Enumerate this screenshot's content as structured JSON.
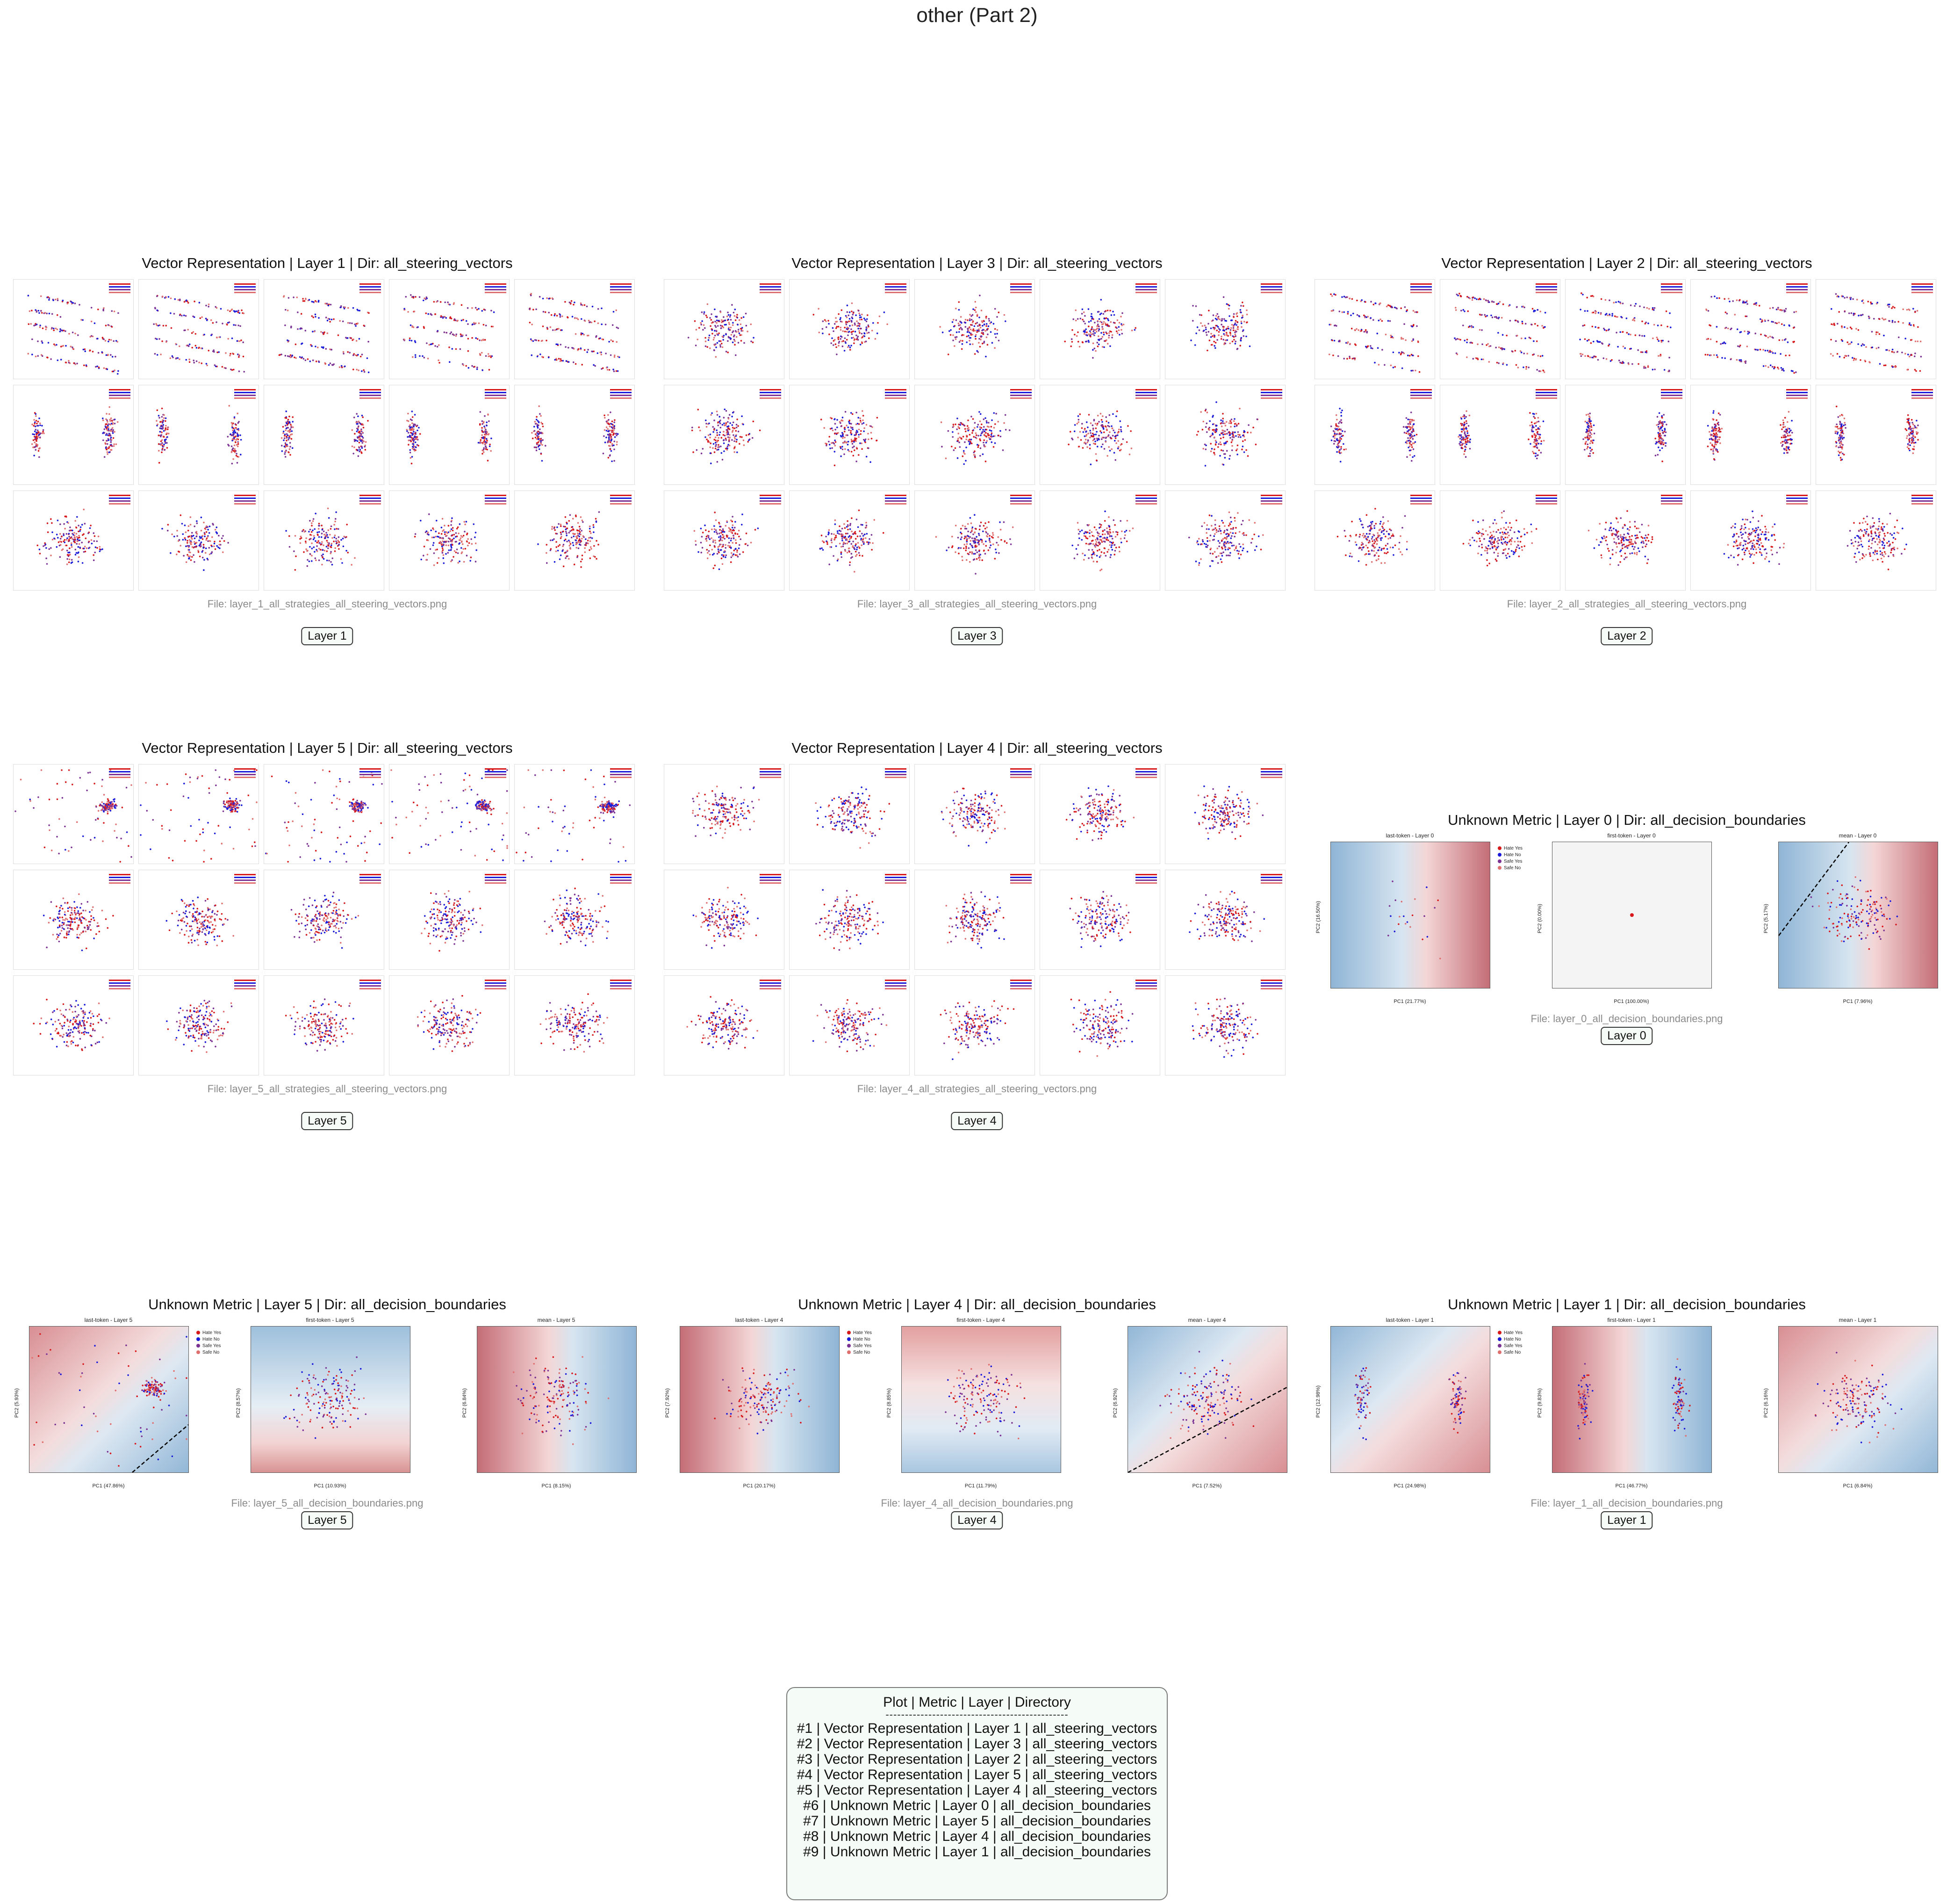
{
  "page": {
    "title": "other (Part 2)"
  },
  "colors": {
    "hate_yes": "#d7191c",
    "hate_no": "#1a1adb",
    "safe_yes": "#7b3294",
    "safe_no": "#e07070"
  },
  "panels": [
    {
      "title": "Vector Representation | Layer 1 | Dir: all_steering_vectors",
      "file": "File: layer_1_all_strategies_all_steering_vectors.png",
      "badge": "Layer 1"
    },
    {
      "title": "Vector Representation | Layer 3 | Dir: all_steering_vectors",
      "file": "File: layer_3_all_strategies_all_steering_vectors.png",
      "badge": "Layer 3"
    },
    {
      "title": "Vector Representation | Layer 2 | Dir: all_steering_vectors",
      "file": "File: layer_2_all_strategies_all_steering_vectors.png",
      "badge": "Layer 2"
    },
    {
      "title": "Vector Representation | Layer 5 | Dir: all_steering_vectors",
      "file": "File: layer_5_all_strategies_all_steering_vectors.png",
      "badge": "Layer 5"
    },
    {
      "title": "Vector Representation | Layer 4 | Dir: all_steering_vectors",
      "file": "File: layer_4_all_strategies_all_steering_vectors.png",
      "badge": "Layer 4"
    },
    {
      "title": "Unknown Metric | Layer 0 | Dir: all_decision_boundaries",
      "file": "File: layer_0_all_decision_boundaries.png",
      "badge": "Layer 0",
      "subplots": [
        {
          "title": "last-token - Layer 0",
          "xlabel": "PC1 (21.77%)",
          "ylabel": "PC2 (16.50%)"
        },
        {
          "title": "first-token - Layer 0",
          "xlabel": "PC1 (100.00%)",
          "ylabel": "PC2 (0.00%)"
        },
        {
          "title": "mean - Layer 0",
          "xlabel": "PC1 (7.96%)",
          "ylabel": "PC2 (5.17%)"
        }
      ]
    },
    {
      "title": "Unknown Metric | Layer 5 | Dir: all_decision_boundaries",
      "file": "File: layer_5_all_decision_boundaries.png",
      "badge": "Layer 5",
      "subplots": [
        {
          "title": "last-token - Layer 5",
          "xlabel": "PC1 (47.86%)",
          "ylabel": "PC2 (5.93%)"
        },
        {
          "title": "first-token - Layer 5",
          "xlabel": "PC1 (10.93%)",
          "ylabel": "PC2 (8.57%)"
        },
        {
          "title": "mean - Layer 5",
          "xlabel": "PC1 (8.15%)",
          "ylabel": "PC2 (6.84%)"
        }
      ]
    },
    {
      "title": "Unknown Metric | Layer 4 | Dir: all_decision_boundaries",
      "file": "File: layer_4_all_decision_boundaries.png",
      "badge": "Layer 4",
      "subplots": [
        {
          "title": "last-token - Layer 4",
          "xlabel": "PC1 (20.17%)",
          "ylabel": "PC2 (7.92%)"
        },
        {
          "title": "first-token - Layer 4",
          "xlabel": "PC1 (11.79%)",
          "ylabel": "PC2 (8.85%)"
        },
        {
          "title": "mean - Layer 4",
          "xlabel": "PC1 (7.52%)",
          "ylabel": "PC2 (6.92%)"
        }
      ]
    },
    {
      "title": "Unknown Metric | Layer 1 | Dir: all_decision_boundaries",
      "file": "File: layer_1_all_decision_boundaries.png",
      "badge": "Layer 1",
      "subplots": [
        {
          "title": "last-token - Layer 1",
          "xlabel": "PC1 (24.98%)",
          "ylabel": "PC2 (12.98%)"
        },
        {
          "title": "first-token - Layer 1",
          "xlabel": "PC1 (46.77%)",
          "ylabel": "PC2 (9.83%)"
        },
        {
          "title": "mean - Layer 1",
          "xlabel": "PC1 (6.84%)",
          "ylabel": "PC2 (6.16%)"
        }
      ]
    }
  ],
  "legend_labels": [
    "Hate Yes",
    "Hate No",
    "Safe Yes",
    "Safe No"
  ],
  "summary": {
    "header": "Plot | Metric | Layer | Directory",
    "separator": "-----------------------------------------------",
    "rows": [
      "#1 | Vector Representation | Layer 1 | all_steering_vectors",
      "#2 | Vector Representation | Layer 3 | all_steering_vectors",
      "#3 | Vector Representation | Layer 2 | all_steering_vectors",
      "#4 | Vector Representation | Layer 5 | all_steering_vectors",
      "#5 | Vector Representation | Layer 4 | all_steering_vectors",
      "#6 | Unknown Metric | Layer 0 | all_decision_boundaries",
      "#7 | Unknown Metric | Layer 5 | all_decision_boundaries",
      "#8 | Unknown Metric | Layer 4 | all_decision_boundaries",
      "#9 | Unknown Metric | Layer 1 | all_decision_boundaries"
    ]
  },
  "chart_data": [
    {
      "type": "scatter",
      "title": "Unknown Metric | Layer 0 | Dir: all_decision_boundaries",
      "xlim": [
        -17,
        17
      ],
      "ylim": [
        -20,
        20
      ],
      "series": [
        {
          "name": "Hate Yes"
        },
        {
          "name": "Hate No"
        },
        {
          "name": "Safe Yes"
        },
        {
          "name": "Safe No"
        }
      ]
    },
    {
      "type": "scatter",
      "title": "Unknown Metric | Layer 5 | Dir: all_decision_boundaries",
      "xlim": [
        -45,
        20
      ],
      "ylim": [
        -22,
        22
      ]
    },
    {
      "type": "scatter",
      "title": "Unknown Metric | Layer 4 | Dir: all_decision_boundaries",
      "xlim": [
        -35,
        35
      ],
      "ylim": [
        -20,
        20
      ]
    },
    {
      "type": "scatter",
      "title": "Unknown Metric | Layer 1 | Dir: all_decision_boundaries",
      "xlim": [
        -25,
        25
      ],
      "ylim": [
        -20,
        20
      ]
    }
  ]
}
